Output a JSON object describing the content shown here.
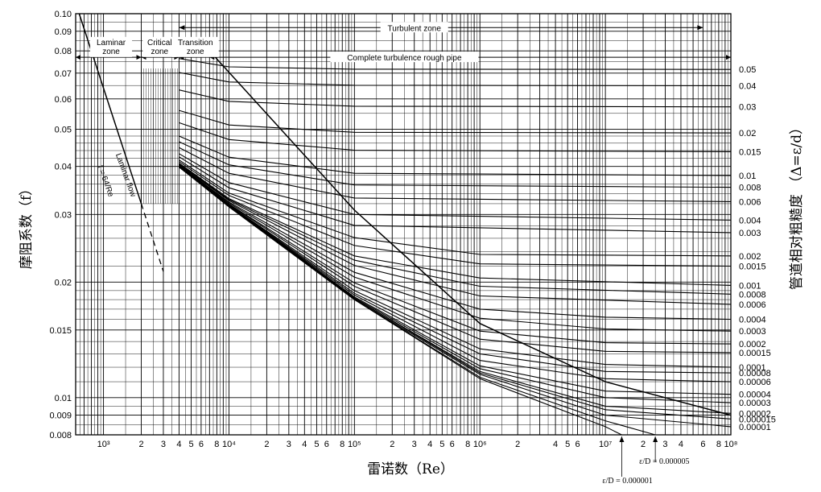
{
  "chart_data": {
    "type": "line",
    "title": "",
    "xlabel": "雷诺数（Re）",
    "ylabel": "摩阻系数（f）",
    "ylabel_right": "管道相对粗糙度 （Δ=ε/d）",
    "x_scale": "log",
    "y_scale": "log",
    "xlim": [
      600,
      100000000
    ],
    "ylim": [
      0.008,
      0.1
    ],
    "grid": true,
    "x_tick_labels": [
      {
        "v": 1000,
        "t": "10³"
      },
      {
        "v": 2000,
        "t": "2"
      },
      {
        "v": 3000,
        "t": "3"
      },
      {
        "v": 4000,
        "t": "4"
      },
      {
        "v": 5000,
        "t": "5"
      },
      {
        "v": 6000,
        "t": "6"
      },
      {
        "v": 8000,
        "t": "8"
      },
      {
        "v": 10000,
        "t": "10⁴"
      },
      {
        "v": 20000,
        "t": "2"
      },
      {
        "v": 30000,
        "t": "3"
      },
      {
        "v": 40000,
        "t": "4"
      },
      {
        "v": 50000,
        "t": "5"
      },
      {
        "v": 60000,
        "t": "6"
      },
      {
        "v": 80000,
        "t": "8"
      },
      {
        "v": 100000,
        "t": "10⁵"
      },
      {
        "v": 200000,
        "t": "2"
      },
      {
        "v": 300000,
        "t": "3"
      },
      {
        "v": 400000,
        "t": "4"
      },
      {
        "v": 500000,
        "t": "5"
      },
      {
        "v": 600000,
        "t": "6"
      },
      {
        "v": 800000,
        "t": "8"
      },
      {
        "v": 1000000,
        "t": "10⁶"
      },
      {
        "v": 2000000,
        "t": "2"
      },
      {
        "v": 4000000,
        "t": "4"
      },
      {
        "v": 5000000,
        "t": "5"
      },
      {
        "v": 6000000,
        "t": "6"
      },
      {
        "v": 10000000,
        "t": "10⁷"
      },
      {
        "v": 20000000,
        "t": "2"
      },
      {
        "v": 30000000,
        "t": "3"
      },
      {
        "v": 40000000,
        "t": "4"
      },
      {
        "v": 60000000,
        "t": "6"
      },
      {
        "v": 80000000,
        "t": "8"
      },
      {
        "v": 100000000,
        "t": "10⁸"
      }
    ],
    "y_tick_labels": [
      {
        "v": 0.1,
        "t": "0.10"
      },
      {
        "v": 0.09,
        "t": "0.09"
      },
      {
        "v": 0.08,
        "t": "0.08"
      },
      {
        "v": 0.07,
        "t": "0.07"
      },
      {
        "v": 0.06,
        "t": "0.06"
      },
      {
        "v": 0.05,
        "t": "0.05"
      },
      {
        "v": 0.04,
        "t": "0.04"
      },
      {
        "v": 0.03,
        "t": "0.03"
      },
      {
        "v": 0.02,
        "t": "0.02"
      },
      {
        "v": 0.015,
        "t": "0.015"
      },
      {
        "v": 0.01,
        "t": "0.01"
      },
      {
        "v": 0.009,
        "t": "0.009"
      },
      {
        "v": 0.008,
        "t": "0.008"
      }
    ],
    "series": [
      {
        "name": "0.05",
        "values": [
          [
            4000,
            0.0764
          ],
          [
            10000,
            0.0727
          ],
          [
            100000,
            0.0717
          ],
          [
            100000000,
            0.0716
          ]
        ]
      },
      {
        "name": "0.04",
        "values": [
          [
            4000,
            0.0703
          ],
          [
            10000,
            0.0664
          ],
          [
            100000,
            0.0651
          ],
          [
            100000000,
            0.0649
          ]
        ]
      },
      {
        "name": "0.03",
        "values": [
          [
            4000,
            0.0633
          ],
          [
            10000,
            0.0591
          ],
          [
            100000,
            0.0574
          ],
          [
            100000000,
            0.0572
          ]
        ]
      },
      {
        "name": "0.02",
        "values": [
          [
            4000,
            0.056
          ],
          [
            10000,
            0.0513
          ],
          [
            100000,
            0.0491
          ],
          [
            100000000,
            0.0489
          ]
        ]
      },
      {
        "name": "0.015",
        "values": [
          [
            4000,
            0.052
          ],
          [
            10000,
            0.047
          ],
          [
            100000,
            0.0441
          ],
          [
            100000000,
            0.0437
          ]
        ]
      },
      {
        "name": "0.01",
        "values": [
          [
            4000,
            0.048
          ],
          [
            10000,
            0.0423
          ],
          [
            100000,
            0.0384
          ],
          [
            100000000,
            0.0379
          ]
        ]
      },
      {
        "name": "0.008",
        "values": [
          [
            4000,
            0.0464
          ],
          [
            10000,
            0.0404
          ],
          [
            100000,
            0.0358
          ],
          [
            100000000,
            0.0353
          ]
        ]
      },
      {
        "name": "0.006",
        "values": [
          [
            4000,
            0.0448
          ],
          [
            10000,
            0.0384
          ],
          [
            100000,
            0.0331
          ],
          [
            100000000,
            0.0324
          ]
        ]
      },
      {
        "name": "0.004",
        "values": [
          [
            4000,
            0.0432
          ],
          [
            10000,
            0.0363
          ],
          [
            100000,
            0.03
          ],
          [
            100000000,
            0.029
          ]
        ]
      },
      {
        "name": "0.003",
        "values": [
          [
            4000,
            0.0424
          ],
          [
            10000,
            0.0352
          ],
          [
            100000,
            0.0281
          ],
          [
            100000000,
            0.0269
          ]
        ]
      },
      {
        "name": "0.002",
        "values": [
          [
            4000,
            0.0416
          ],
          [
            10000,
            0.0341
          ],
          [
            100000,
            0.0261
          ],
          [
            1000000,
            0.0236
          ],
          [
            100000000,
            0.0234
          ]
        ]
      },
      {
        "name": "0.0015",
        "values": [
          [
            4000,
            0.0412
          ],
          [
            10000,
            0.0336
          ],
          [
            100000,
            0.0249
          ],
          [
            1000000,
            0.0223
          ],
          [
            100000000,
            0.022
          ]
        ]
      },
      {
        "name": "0.001",
        "values": [
          [
            4000,
            0.0408
          ],
          [
            10000,
            0.033
          ],
          [
            100000,
            0.0234
          ],
          [
            1000000,
            0.0205
          ],
          [
            100000000,
            0.0196
          ]
        ]
      },
      {
        "name": "0.0008",
        "values": [
          [
            4000,
            0.0406
          ],
          [
            10000,
            0.0328
          ],
          [
            100000,
            0.0228
          ],
          [
            1000000,
            0.0195
          ],
          [
            100000000,
            0.0186
          ]
        ]
      },
      {
        "name": "0.0006",
        "values": [
          [
            4000,
            0.0405
          ],
          [
            10000,
            0.0326
          ],
          [
            100000,
            0.0221
          ],
          [
            1000000,
            0.0184
          ],
          [
            100000000,
            0.0175
          ]
        ]
      },
      {
        "name": "0.0004",
        "values": [
          [
            4000,
            0.0403
          ],
          [
            10000,
            0.0323
          ],
          [
            100000,
            0.0212
          ],
          [
            1000000,
            0.017
          ],
          [
            10000000,
            0.0162
          ],
          [
            100000000,
            0.016
          ]
        ]
      },
      {
        "name": "0.0003",
        "values": [
          [
            4000,
            0.0402
          ],
          [
            10000,
            0.0321
          ],
          [
            100000,
            0.0206
          ],
          [
            1000000,
            0.0161
          ],
          [
            10000000,
            0.0151
          ],
          [
            100000000,
            0.0149
          ]
        ]
      },
      {
        "name": "0.0002",
        "values": [
          [
            4000,
            0.0401
          ],
          [
            10000,
            0.0319
          ],
          [
            100000,
            0.0199
          ],
          [
            1000000,
            0.0149
          ],
          [
            10000000,
            0.0139
          ],
          [
            100000000,
            0.0138
          ]
        ]
      },
      {
        "name": "0.00015",
        "values": [
          [
            4000,
            0.0401
          ],
          [
            10000,
            0.0318
          ],
          [
            100000,
            0.0195
          ],
          [
            1000000,
            0.0142
          ],
          [
            10000000,
            0.0132
          ],
          [
            100000000,
            0.0131
          ]
        ]
      },
      {
        "name": "0.0001",
        "values": [
          [
            4000,
            0.04
          ],
          [
            10000,
            0.0317
          ],
          [
            100000,
            0.019
          ],
          [
            1000000,
            0.0134
          ],
          [
            10000000,
            0.0122
          ],
          [
            100000000,
            0.012
          ]
        ]
      },
      {
        "name": "0.00008",
        "values": [
          [
            4000,
            0.04
          ],
          [
            10000,
            0.0317
          ],
          [
            100000,
            0.0187
          ],
          [
            1000000,
            0.013
          ],
          [
            10000000,
            0.0117
          ],
          [
            100000000,
            0.0116
          ]
        ]
      },
      {
        "name": "0.00006",
        "values": [
          [
            4000,
            0.04
          ],
          [
            10000,
            0.0316
          ],
          [
            100000,
            0.0185
          ],
          [
            1000000,
            0.0125
          ],
          [
            10000000,
            0.0112
          ],
          [
            100000000,
            0.011
          ]
        ]
      },
      {
        "name": "0.00004",
        "values": [
          [
            4000,
            0.0399
          ],
          [
            10000,
            0.0316
          ],
          [
            100000,
            0.0183
          ],
          [
            1000000,
            0.0121
          ],
          [
            10000000,
            0.0104
          ],
          [
            100000000,
            0.0102
          ]
        ]
      },
      {
        "name": "0.00003",
        "values": [
          [
            4000,
            0.0399
          ],
          [
            10000,
            0.0315
          ],
          [
            100000,
            0.0182
          ],
          [
            1000000,
            0.0119
          ],
          [
            10000000,
            0.01
          ],
          [
            100000000,
            0.0097
          ]
        ]
      },
      {
        "name": "0.00002",
        "values": [
          [
            4000,
            0.0399
          ],
          [
            10000,
            0.0315
          ],
          [
            100000,
            0.0181
          ],
          [
            1000000,
            0.0117
          ],
          [
            10000000,
            0.0095
          ],
          [
            100000000,
            0.0091
          ]
        ]
      },
      {
        "name": "0.000015",
        "values": [
          [
            4000,
            0.0399
          ],
          [
            10000,
            0.0315
          ],
          [
            100000,
            0.0181
          ],
          [
            1000000,
            0.0116
          ],
          [
            10000000,
            0.0093
          ],
          [
            100000000,
            0.0088
          ]
        ]
      },
      {
        "name": "0.00001",
        "values": [
          [
            4000,
            0.0399
          ],
          [
            10000,
            0.0315
          ],
          [
            100000,
            0.018
          ],
          [
            1000000,
            0.0115
          ],
          [
            10000000,
            0.009
          ],
          [
            100000000,
            0.0084
          ]
        ]
      },
      {
        "name": "0.000005",
        "values": [
          [
            4000,
            0.0399
          ],
          [
            10000,
            0.0314
          ],
          [
            100000,
            0.018
          ],
          [
            1000000,
            0.0113
          ],
          [
            10000000,
            0.0087
          ],
          [
            25000000,
            0.008
          ]
        ]
      },
      {
        "name": "0.000001",
        "values": [
          [
            4000,
            0.0399
          ],
          [
            10000,
            0.0314
          ],
          [
            100000,
            0.018
          ],
          [
            1000000,
            0.0112
          ],
          [
            10000000,
            0.0084
          ],
          [
            13500000,
            0.008
          ]
        ]
      }
    ],
    "laminar_line": {
      "values": [
        [
          640,
          0.1
        ],
        [
          2000,
          0.032
        ]
      ]
    },
    "laminar_line_dashed": {
      "values": [
        [
          2000,
          0.032
        ],
        [
          3000,
          0.0213
        ]
      ]
    },
    "complete_turbulence_boundary": {
      "values": [
        [
          7000,
          0.08
        ],
        [
          100000,
          0.0308
        ],
        [
          1000000,
          0.0156
        ],
        [
          10000000,
          0.011
        ],
        [
          100000000,
          0.009
        ]
      ]
    },
    "annotations": {
      "turbulent_zone": "Turbulent zone",
      "laminar_zone_1": "Laminar",
      "laminar_zone_2": "zone",
      "critical_zone_1": "Critical",
      "critical_zone_2": "zone",
      "transition_zone_1": "Transition",
      "transition_zone_2": "zone",
      "complete_turbulence": "Complete turbulence rough pipe",
      "laminar_flow": "Laminar flow",
      "laminar_formula": "f = 64/Re",
      "eps_000005": "ε/D = 0.000005",
      "eps_000001": "ε/D = 0.000001"
    }
  }
}
